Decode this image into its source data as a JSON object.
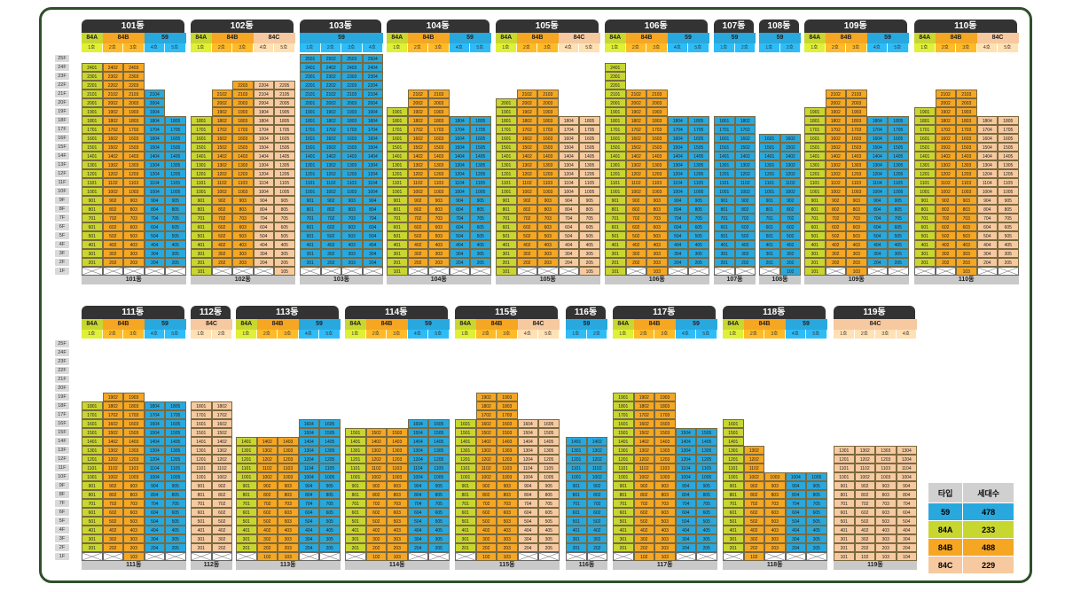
{
  "floors": [
    "25F",
    "24F",
    "23F",
    "22F",
    "21F",
    "20F",
    "19F",
    "18F",
    "17F",
    "16F",
    "15F",
    "14F",
    "13F",
    "12F",
    "11F",
    "10F",
    "9F",
    "8F",
    "7F",
    "6F",
    "5F",
    "4F",
    "3F",
    "2F",
    "1F"
  ],
  "colors": {
    "59": "#29a8dd",
    "84A": "#c8d630",
    "84B": "#f5a623",
    "84C": "#f6c9a0",
    "line_head": "#333333",
    "floor_tag": "#d9d9d9"
  },
  "rows": [
    {
      "buildings": [
        {
          "name": "101동",
          "types": [
            {
              "t": "84A",
              "lines": [
                "1호"
              ]
            },
            {
              "t": "84B",
              "lines": [
                "2호",
                "3호"
              ]
            },
            {
              "t": "59",
              "lines": [
                "4호",
                "5호"
              ]
            }
          ],
          "tops": [
            24,
            24,
            24,
            21,
            18
          ],
          "bottom": [
            "X",
            "X",
            "X",
            "X",
            "X"
          ]
        },
        {
          "name": "102동",
          "types": [
            {
              "t": "84A",
              "lines": [
                "1호"
              ]
            },
            {
              "t": "84B",
              "lines": [
                "2호",
                "3호"
              ]
            },
            {
              "t": "84C",
              "lines": [
                "4호",
                "5호"
              ]
            }
          ],
          "tops": [
            18,
            21,
            22,
            22,
            22
          ],
          "bottom": [
            "101",
            "X",
            "X",
            "X",
            "105"
          ]
        },
        {
          "name": "103동",
          "types": [
            {
              "t": "59",
              "lines": [
                "1호",
                "2호",
                "3호",
                "4호"
              ]
            }
          ],
          "tops": [
            25,
            25,
            25,
            25
          ],
          "bottom": [
            "X",
            "X",
            "X",
            "X"
          ]
        },
        {
          "name": "104동",
          "types": [
            {
              "t": "84A",
              "lines": [
                "1호"
              ]
            },
            {
              "t": "84B",
              "lines": [
                "2호",
                "3호"
              ]
            },
            {
              "t": "59",
              "lines": [
                "4호",
                "5호"
              ]
            }
          ],
          "tops": [
            19,
            21,
            21,
            18,
            18
          ],
          "bottom": [
            "101",
            "X",
            "X",
            "X",
            "X"
          ]
        },
        {
          "name": "105동",
          "types": [
            {
              "t": "84A",
              "lines": [
                "1호"
              ]
            },
            {
              "t": "84B",
              "lines": [
                "2호",
                "3호"
              ]
            },
            {
              "t": "84C",
              "lines": [
                "4호",
                "5호"
              ]
            }
          ],
          "tops": [
            20,
            21,
            21,
            18,
            18
          ],
          "bottom": [
            "101",
            "X",
            "X",
            "X",
            "105"
          ]
        },
        {
          "name": "106동",
          "types": [
            {
              "t": "84A",
              "lines": [
                "1호"
              ]
            },
            {
              "t": "84B",
              "lines": [
                "2호",
                "3호"
              ]
            },
            {
              "t": "59",
              "lines": [
                "4호",
                "5호"
              ]
            }
          ],
          "tops": [
            24,
            21,
            21,
            18,
            18
          ],
          "bottom": [
            "101",
            "X",
            "103",
            "X",
            "X"
          ]
        },
        {
          "name": "107동",
          "types": [
            {
              "t": "59",
              "lines": [
                "1호",
                "2호"
              ]
            }
          ],
          "tops": [
            18,
            18
          ],
          "bottom": [
            "X",
            "X"
          ]
        },
        {
          "name": "108동",
          "types": [
            {
              "t": "59",
              "lines": [
                "1호",
                "2호"
              ]
            }
          ],
          "tops": [
            16,
            16
          ],
          "bottom": [
            "X",
            "102"
          ]
        },
        {
          "name": "109동",
          "types": [
            {
              "t": "84A",
              "lines": [
                "1호"
              ]
            },
            {
              "t": "84B",
              "lines": [
                "2호",
                "3호"
              ]
            },
            {
              "t": "59",
              "lines": [
                "4호",
                "5호"
              ]
            }
          ],
          "tops": [
            19,
            21,
            21,
            18,
            18
          ],
          "bottom": [
            "101",
            "X",
            "103",
            "X",
            "X"
          ]
        },
        {
          "name": "110동",
          "types": [
            {
              "t": "84A",
              "lines": [
                "1호"
              ]
            },
            {
              "t": "84B",
              "lines": [
                "2호",
                "3호"
              ]
            },
            {
              "t": "84C",
              "lines": [
                "4호",
                "5호"
              ]
            }
          ],
          "tops": [
            19,
            21,
            21,
            18,
            18
          ],
          "bottom": [
            "X",
            "X",
            "103",
            "X",
            "X"
          ]
        }
      ]
    },
    {
      "buildings": [
        {
          "name": "111동",
          "types": [
            {
              "t": "84A",
              "lines": [
                "1호"
              ]
            },
            {
              "t": "84B",
              "lines": [
                "2호",
                "3호"
              ]
            },
            {
              "t": "59",
              "lines": [
                "4호",
                "5호"
              ]
            }
          ],
          "tops": [
            18,
            19,
            19,
            18,
            18
          ],
          "bottom": [
            "X",
            "X",
            "103",
            "X",
            "X"
          ]
        },
        {
          "name": "112동",
          "types": [
            {
              "t": "84C",
              "lines": [
                "1호",
                "2호"
              ]
            }
          ],
          "tops": [
            18,
            18
          ],
          "bottom": [
            "X",
            "X"
          ]
        },
        {
          "name": "113동",
          "types": [
            {
              "t": "84A",
              "lines": [
                "1호"
              ]
            },
            {
              "t": "84B",
              "lines": [
                "2호",
                "3호"
              ]
            },
            {
              "t": "59",
              "lines": [
                "4호",
                "5호"
              ]
            }
          ],
          "tops": [
            14,
            14,
            14,
            16,
            16
          ],
          "bottom": [
            "X",
            "102",
            "103",
            "X",
            "X"
          ]
        },
        {
          "name": "114동",
          "types": [
            {
              "t": "84A",
              "lines": [
                "1호"
              ]
            },
            {
              "t": "84B",
              "lines": [
                "2호",
                "3호"
              ]
            },
            {
              "t": "59",
              "lines": [
                "4호",
                "5호"
              ]
            }
          ],
          "tops": [
            15,
            15,
            15,
            16,
            16
          ],
          "bottom": [
            "X",
            "102",
            "103",
            "X",
            "X"
          ]
        },
        {
          "name": "115동",
          "types": [
            {
              "t": "84A",
              "lines": [
                "1호"
              ]
            },
            {
              "t": "84B",
              "lines": [
                "2호",
                "3호"
              ]
            },
            {
              "t": "84C",
              "lines": [
                "4호",
                "5호"
              ]
            }
          ],
          "tops": [
            16,
            19,
            19,
            16,
            16
          ],
          "bottom": [
            "X",
            "102",
            "103",
            "X",
            "X"
          ]
        },
        {
          "name": "116동",
          "types": [
            {
              "t": "59",
              "lines": [
                "1호",
                "2호"
              ]
            }
          ],
          "tops": [
            14,
            14
          ],
          "bottom": [
            "X",
            "X"
          ]
        },
        {
          "name": "117동",
          "types": [
            {
              "t": "84A",
              "lines": [
                "1호"
              ]
            },
            {
              "t": "84B",
              "lines": [
                "2호",
                "3호"
              ]
            },
            {
              "t": "59",
              "lines": [
                "4호",
                "5호"
              ]
            }
          ],
          "tops": [
            19,
            19,
            19,
            15,
            15
          ],
          "bottom": [
            "X",
            "102",
            "103",
            "X",
            "X"
          ]
        },
        {
          "name": "118동",
          "types": [
            {
              "t": "84A",
              "lines": [
                "1호"
              ]
            },
            {
              "t": "84B",
              "lines": [
                "2호",
                "3호"
              ]
            },
            {
              "t": "59",
              "lines": [
                "4호",
                "5호"
              ]
            }
          ],
          "tops": [
            16,
            13,
            10,
            10,
            10
          ],
          "bottom": [
            "X",
            "102",
            "X",
            "X",
            "X"
          ]
        },
        {
          "name": "119동",
          "types": [
            {
              "t": "84C",
              "lines": [
                "1호",
                "2호",
                "3호",
                "4호"
              ]
            }
          ],
          "tops": [
            13,
            13,
            13,
            13
          ],
          "bottom": [
            "101",
            "102",
            "103",
            "104"
          ]
        }
      ]
    }
  ],
  "legend": {
    "headers": [
      "타입",
      "세대수"
    ],
    "rows": [
      {
        "type": "59",
        "count": "478"
      },
      {
        "type": "84A",
        "count": "233"
      },
      {
        "type": "84B",
        "count": "488"
      },
      {
        "type": "84C",
        "count": "229"
      }
    ]
  }
}
